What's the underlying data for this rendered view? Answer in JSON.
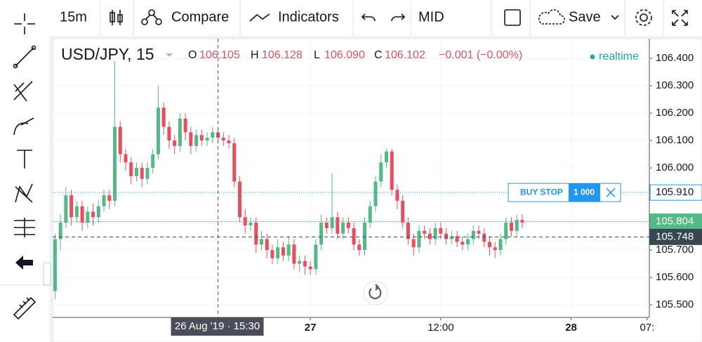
{
  "toolbar": {
    "interval": "15m",
    "compare": "Compare",
    "indicators": "Indicators",
    "price_type": "MID",
    "save": "Save"
  },
  "legend": {
    "symbol": "USD/JPY, 15",
    "o_label": "O",
    "open": "106.105",
    "h_label": "H",
    "high": "106.128",
    "l_label": "L",
    "low": "106.090",
    "c_label": "C",
    "close": "106.102",
    "change": "−0.001 (−0.00%)",
    "status": "realtime"
  },
  "chart_data": {
    "type": "candlestick",
    "x": [
      0.5,
      1,
      1.5,
      2,
      2.5,
      3,
      3.5,
      4,
      4.5,
      5,
      5.5,
      6,
      6.5,
      7,
      7.5,
      8,
      8.5,
      9,
      9.5,
      10,
      10.5,
      11,
      11.5,
      12,
      12.5,
      13,
      13.5,
      14,
      14.5,
      15,
      15.5,
      16,
      16.5,
      17,
      17.5,
      18,
      18.5,
      19,
      19.5,
      20,
      20.5,
      21,
      21.5,
      22,
      22.5,
      23,
      23.5,
      24,
      24.5,
      25,
      25.5,
      26,
      26.5,
      27,
      27.5,
      28,
      28.5,
      29,
      29.5,
      30,
      30.5,
      31,
      31.5,
      32,
      32.5,
      33,
      33.5,
      34,
      34.5,
      35,
      35.5,
      36,
      36.5,
      37,
      37.5,
      38,
      38.5,
      39,
      39.5,
      40,
      40.5,
      41,
      41.5,
      42,
      42.5,
      43,
      43.5
    ],
    "open": [
      105.55,
      105.74,
      105.8,
      105.9,
      105.82,
      105.86,
      105.8,
      105.84,
      105.82,
      105.86,
      105.9,
      105.88,
      106.15,
      106.05,
      106.02,
      105.97,
      106.0,
      105.96,
      106.0,
      106.05,
      106.22,
      106.15,
      106.1,
      106.08,
      106.18,
      106.13,
      106.08,
      106.12,
      106.1,
      106.11,
      106.13,
      106.11,
      106.1,
      106.09,
      105.95,
      105.82,
      105.79,
      105.8,
      105.72,
      105.74,
      105.7,
      105.67,
      105.71,
      105.68,
      105.72,
      105.65,
      105.66,
      105.64,
      105.63,
      105.72,
      105.8,
      105.78,
      105.82,
      105.76,
      105.8,
      105.78,
      105.72,
      105.7,
      105.8,
      105.86,
      105.95,
      106.02,
      106.06,
      105.92,
      105.88,
      105.8,
      105.74,
      105.71,
      105.77,
      105.76,
      105.74,
      105.78,
      105.76,
      105.74,
      105.75,
      105.73,
      105.72,
      105.74,
      105.77,
      105.76,
      105.73,
      105.71,
      105.7,
      105.74,
      105.8,
      105.77,
      105.81
    ],
    "high": [
      105.76,
      105.83,
      105.93,
      105.92,
      105.88,
      105.88,
      105.86,
      105.87,
      105.88,
      105.92,
      105.92,
      106.39,
      106.17,
      106.07,
      106.04,
      106.02,
      106.02,
      106.02,
      106.07,
      106.3,
      106.24,
      106.17,
      106.12,
      106.2,
      106.2,
      106.15,
      106.14,
      106.14,
      106.13,
      106.15,
      106.15,
      106.13,
      106.12,
      106.11,
      105.97,
      105.85,
      105.82,
      105.82,
      105.77,
      105.76,
      105.72,
      105.74,
      105.73,
      105.75,
      105.74,
      105.68,
      105.68,
      105.66,
      105.74,
      105.83,
      105.82,
      105.98,
      105.84,
      105.82,
      105.82,
      105.8,
      105.74,
      105.82,
      105.88,
      105.97,
      106.05,
      106.07,
      106.07,
      105.94,
      105.9,
      105.82,
      105.76,
      105.79,
      105.79,
      105.78,
      105.8,
      105.8,
      105.78,
      105.77,
      105.77,
      105.75,
      105.76,
      105.79,
      105.79,
      105.78,
      105.75,
      105.73,
      105.76,
      105.82,
      105.82,
      105.83,
      105.83
    ],
    "low": [
      105.52,
      105.7,
      105.78,
      105.79,
      105.8,
      105.77,
      105.78,
      105.79,
      105.8,
      105.84,
      105.85,
      105.86,
      106.02,
      105.99,
      105.94,
      105.95,
      105.93,
      105.94,
      105.98,
      106.03,
      106.12,
      106.07,
      106.05,
      106.06,
      106.1,
      106.05,
      106.06,
      106.08,
      106.08,
      106.09,
      106.09,
      106.08,
      106.07,
      105.93,
      105.8,
      105.76,
      105.77,
      105.69,
      105.7,
      105.67,
      105.65,
      105.65,
      105.66,
      105.66,
      105.63,
      105.62,
      105.61,
      105.61,
      105.61,
      105.7,
      105.76,
      105.76,
      105.74,
      105.74,
      105.76,
      105.7,
      105.68,
      105.68,
      105.78,
      105.84,
      105.93,
      106.0,
      105.9,
      105.85,
      105.78,
      105.72,
      105.68,
      105.69,
      105.74,
      105.72,
      105.72,
      105.74,
      105.72,
      105.72,
      105.71,
      105.7,
      105.7,
      105.72,
      105.74,
      105.71,
      105.68,
      105.67,
      105.68,
      105.72,
      105.75,
      105.75,
      105.78
    ],
    "close": [
      105.74,
      105.8,
      105.9,
      105.82,
      105.86,
      105.8,
      105.84,
      105.82,
      105.86,
      105.9,
      105.88,
      106.15,
      106.05,
      106.02,
      105.97,
      106.0,
      105.96,
      106.0,
      106.05,
      106.22,
      106.15,
      106.1,
      106.08,
      106.18,
      106.13,
      106.08,
      106.12,
      106.1,
      106.11,
      106.13,
      106.11,
      106.1,
      106.09,
      105.95,
      105.82,
      105.79,
      105.8,
      105.72,
      105.74,
      105.7,
      105.67,
      105.71,
      105.68,
      105.72,
      105.65,
      105.66,
      105.64,
      105.63,
      105.72,
      105.8,
      105.78,
      105.82,
      105.76,
      105.8,
      105.78,
      105.72,
      105.7,
      105.8,
      105.86,
      105.95,
      106.02,
      106.06,
      105.92,
      105.88,
      105.8,
      105.74,
      105.71,
      105.77,
      105.76,
      105.74,
      105.78,
      105.76,
      105.74,
      105.75,
      105.73,
      105.72,
      105.74,
      105.77,
      105.76,
      105.73,
      105.71,
      105.7,
      105.74,
      105.8,
      105.77,
      105.81,
      105.8
    ],
    "up_color": "#53b987",
    "down_color": "#eb4d5c",
    "xlim": [
      0.28,
      55.2
    ],
    "xticks": [
      {
        "value": 24,
        "label": "27"
      },
      {
        "value": 36,
        "label": "12:00"
      },
      {
        "value": 48,
        "label": "28"
      },
      {
        "value": 55,
        "label": "07:"
      }
    ],
    "ylim": [
      105.454,
      106.472
    ],
    "yticks": [
      {
        "value": 105.5,
        "label": "105.500"
      },
      {
        "value": 105.6,
        "label": "105.600"
      },
      {
        "value": 105.7,
        "label": "105.700"
      },
      {
        "value": 105.8,
        "label": "105.800"
      },
      {
        "value": 105.9,
        "label": "105.900"
      },
      {
        "value": 106.0,
        "label": "106.000"
      },
      {
        "value": 106.1,
        "label": "106.100"
      },
      {
        "value": 106.2,
        "label": "106.200"
      },
      {
        "value": 106.3,
        "label": "106.300"
      },
      {
        "value": 106.4,
        "label": "106.400"
      }
    ],
    "grid": true,
    "price_lines": [
      {
        "value": 105.91,
        "label": "105.910",
        "color": "#2196f3",
        "order": "BUY STOP",
        "quantity": "1 000"
      },
      {
        "value": 105.804,
        "label": "105.804",
        "color": "#53b987"
      },
      {
        "value": 105.748,
        "label": "105.748",
        "color": "#37474f"
      }
    ],
    "crosshair": {
      "x": 15.5,
      "label": "26 Aug '19 · 15:30"
    }
  }
}
